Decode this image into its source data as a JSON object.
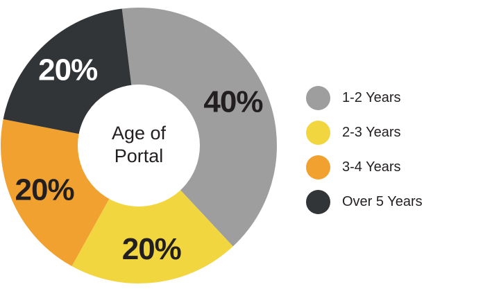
{
  "chart_data": {
    "type": "pie",
    "title": "Age of Portal",
    "slices": [
      {
        "label": "1-2 Years",
        "value": 40,
        "value_label": "40%",
        "color": "#9d9e9d",
        "label_color": "#231f20"
      },
      {
        "label": "2-3 Years",
        "value": 20,
        "value_label": "20%",
        "color": "#f2d640",
        "label_color": "#231f20"
      },
      {
        "label": "3-4 Years",
        "value": 20,
        "value_label": "20%",
        "color": "#f0a12f",
        "label_color": "#231f20"
      },
      {
        "label": "Over 5 Years",
        "value": 20,
        "value_label": "20%",
        "color": "#323537",
        "label_color": "#ffffff"
      }
    ],
    "donut": true,
    "legend_position": "right"
  }
}
